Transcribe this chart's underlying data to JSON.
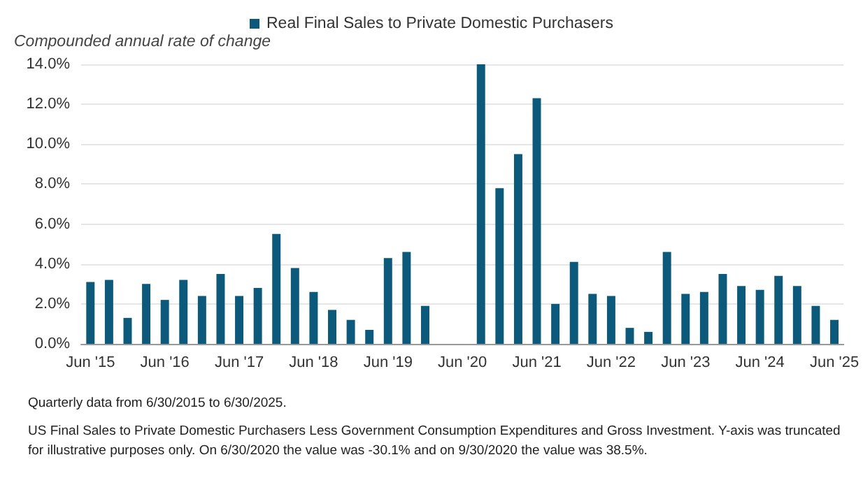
{
  "chart_data": {
    "type": "bar",
    "ylabel": "Compounded annual rate of change",
    "categories": [
      "Jun '15",
      null,
      null,
      null,
      "Jun '16",
      null,
      null,
      null,
      "Jun '17",
      null,
      null,
      null,
      "Jun '18",
      null,
      null,
      null,
      "Jun '19",
      null,
      null,
      null,
      "Jun '20",
      null,
      null,
      null,
      "Jun '21",
      null,
      null,
      null,
      "Jun '22",
      null,
      null,
      null,
      "Jun '23",
      null,
      null,
      null,
      "Jun '24",
      null,
      null,
      null,
      "Jun '25"
    ],
    "series": [
      {
        "name": "Real Final Sales to Private Domestic Purchasers",
        "color": "#0b5a7c",
        "values": [
          3.1,
          3.2,
          1.3,
          3.0,
          2.2,
          3.2,
          2.4,
          3.5,
          2.4,
          2.8,
          5.5,
          3.8,
          2.6,
          1.7,
          1.2,
          0.7,
          4.3,
          4.6,
          1.9,
          null,
          null,
          14.0,
          7.8,
          9.5,
          12.3,
          2.0,
          4.1,
          2.5,
          2.4,
          0.8,
          0.6,
          4.6,
          2.5,
          2.6,
          3.5,
          2.9,
          2.7,
          3.4,
          2.9,
          1.9,
          1.2
        ]
      }
    ],
    "ylim": [
      0,
      14
    ],
    "yticks": [
      {
        "value": 0,
        "label": "0.0%"
      },
      {
        "value": 2,
        "label": "2.0%"
      },
      {
        "value": 4,
        "label": "4.0%"
      },
      {
        "value": 6,
        "label": "6.0%"
      },
      {
        "value": 8,
        "label": "8.0%"
      },
      {
        "value": 10,
        "label": "10.0%"
      },
      {
        "value": 12,
        "label": "12.0%"
      },
      {
        "value": 14,
        "label": "14.0%"
      }
    ],
    "grid": "y",
    "legend": "top",
    "annotations": [
      "Quarterly data from 6/30/2015 to 6/30/2025.",
      "US Final Sales to Private Domestic Purchasers Less Government Consumption Expenditures and Gross Investment. Y-axis was truncated for illustrative purposes only. On 6/30/2020 the value was -30.1% and on 9/30/2020 the value was 38.5%."
    ]
  }
}
